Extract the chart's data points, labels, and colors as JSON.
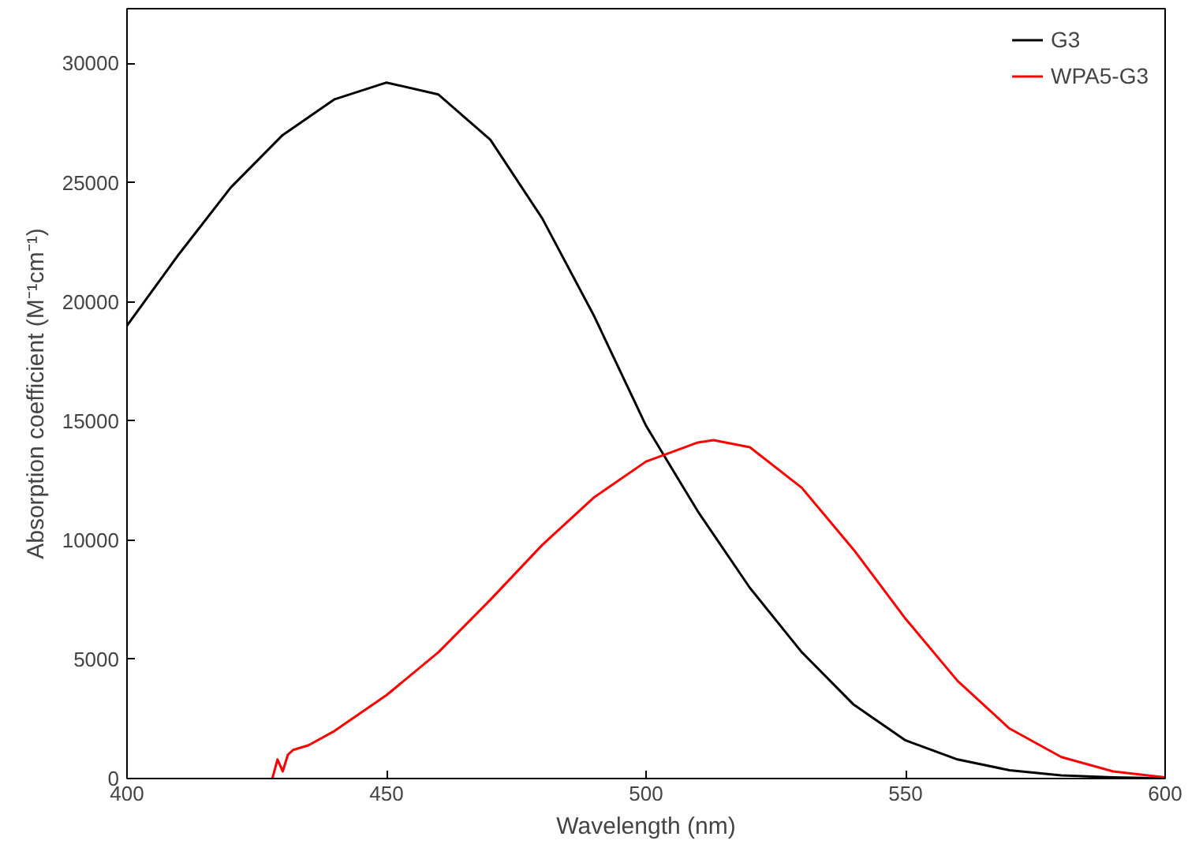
{
  "chart_data": {
    "type": "line",
    "xlabel": "Wavelength (nm)",
    "ylabel": "Absorption coefficient (M⁻¹cm⁻¹)",
    "xlim": [
      400,
      600
    ],
    "ylim": [
      0,
      32300
    ],
    "xticks": [
      400,
      450,
      500,
      550,
      600
    ],
    "yticks": [
      0,
      5000,
      10000,
      15000,
      20000,
      25000,
      30000
    ],
    "grid": false,
    "legend": "top right",
    "marker": "none",
    "line_style": "solid",
    "series": [
      {
        "name": "G3",
        "color": "#000000",
        "x": [
          400,
          410,
          420,
          430,
          440,
          450,
          460,
          470,
          480,
          490,
          500,
          505,
          510,
          520,
          530,
          540,
          550,
          560,
          570,
          580,
          590,
          600
        ],
        "values": [
          19000,
          22000,
          24800,
          27000,
          28500,
          29200,
          28700,
          26800,
          23500,
          19400,
          14800,
          13000,
          11200,
          8000,
          5300,
          3100,
          1600,
          800,
          350,
          130,
          50,
          10
        ]
      },
      {
        "name": "WPA5-G3",
        "color": "#ff0000",
        "x": [
          428,
          429,
          430,
          431,
          432,
          435,
          440,
          450,
          460,
          470,
          480,
          490,
          500,
          510,
          513,
          520,
          530,
          540,
          550,
          560,
          570,
          580,
          590,
          600
        ],
        "values": [
          0,
          800,
          300,
          1000,
          1200,
          1400,
          2000,
          3500,
          5300,
          7500,
          9800,
          11800,
          13300,
          14100,
          14200,
          13900,
          12200,
          9600,
          6700,
          4100,
          2100,
          900,
          300,
          50
        ]
      }
    ]
  }
}
